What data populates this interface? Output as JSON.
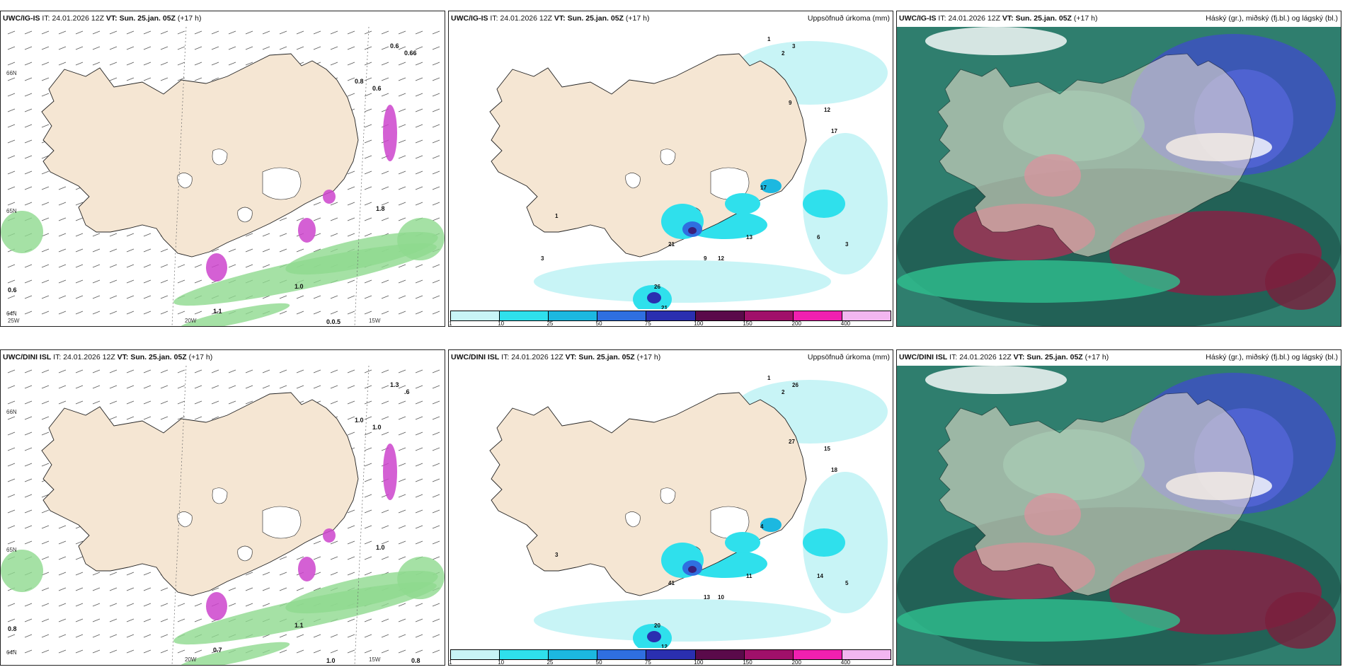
{
  "colors": {
    "land": "#f5e6d3",
    "ocean_dry": "#ffffff",
    "precip_light": "#bff2f2",
    "precip_mid": "#39d4e0",
    "precip_heavy": "#3a7bd5",
    "precip_core": "#3b1f7a",
    "wind_green": "#8fd98f",
    "snow_magenta": "#cc44cc",
    "cloud_high": "#3c8f7a",
    "cloud_mid": "#a83256",
    "cloud_low": "#3f4fc6"
  },
  "panels": [
    {
      "model": "UWC/IG-IS",
      "init_label": "IT:",
      "init_time": "24.01.2026 12Z",
      "valid_label": "VT:",
      "valid_time": "Sun. 25.jan. 05Z",
      "lead": "(+17 h)",
      "field": "",
      "coords": [
        "66N",
        "65N",
        "64N",
        "25W",
        "20W",
        "15W"
      ],
      "values": [
        "0.6",
        "0.66",
        "0.8",
        "0.6",
        "1.8",
        "1.0",
        "1.1",
        "0.6",
        "0.0.5"
      ]
    },
    {
      "model": "UWC/IG-IS",
      "init_label": "IT:",
      "init_time": "24.01.2026 12Z",
      "valid_label": "VT:",
      "valid_time": "Sun. 25.jan. 05Z",
      "lead": "(+17 h)",
      "field": "Uppsöfnuð úrkoma (mm)",
      "values": [
        "1",
        "2",
        "3",
        "12",
        "17",
        "9",
        "21",
        "26",
        "17",
        "13",
        "12",
        "6",
        "3",
        "9",
        "21",
        "1",
        "3"
      ]
    },
    {
      "model": "UWC/IG-IS",
      "init_label": "IT:",
      "init_time": "24.01.2026 12Z",
      "valid_label": "VT:",
      "valid_time": "Sun. 25.jan. 05Z",
      "lead": "(+17 h)",
      "field": "Háský (gr.), miðský (fj.bl.) og lágský (bl.)"
    },
    {
      "model": "UWC/DINI ISL",
      "init_label": "IT:",
      "init_time": "24.01.2026 12Z",
      "valid_label": "VT:",
      "valid_time": "Sun. 25.jan. 05Z",
      "lead": "(+17 h)",
      "field": "",
      "coords": [
        "66N",
        "65N",
        "64N",
        "20W",
        "15W"
      ],
      "values": [
        "1.3",
        ".6",
        "1.0",
        "1.0",
        "1.0",
        "1.1",
        "0.7",
        "0.8",
        "1.0",
        "0.8"
      ]
    },
    {
      "model": "UWC/DINI ISL",
      "init_label": "IT:",
      "init_time": "24.01.2026 12Z",
      "valid_label": "VT:",
      "valid_time": "Sun. 25.jan. 05Z",
      "lead": "(+17 h)",
      "field": "Uppsöfnuð úrkoma (mm)",
      "values": [
        "1",
        "2",
        "26",
        "15",
        "18",
        "27",
        "41",
        "20",
        "4",
        "11",
        "10",
        "14",
        "5",
        "13",
        "12",
        "3"
      ]
    },
    {
      "model": "UWC/DINI ISL",
      "init_label": "IT:",
      "init_time": "24.01.2026 12Z",
      "valid_label": "VT:",
      "valid_time": "Sun. 25.jan. 05Z",
      "lead": "(+17 h)",
      "field": "Háský (gr.), miðský (fj.bl.) og lágský (bl.)"
    }
  ],
  "colorbar": {
    "ticks": [
      "1",
      "10",
      "25",
      "50",
      "75",
      "100",
      "150",
      "200",
      "400"
    ],
    "colors": [
      "#c8f4f6",
      "#2fe0ec",
      "#1cb8e0",
      "#2f6fe0",
      "#2a2fb0",
      "#5a0a4a",
      "#a0106a",
      "#f020b0",
      "#f2b6f0"
    ]
  }
}
